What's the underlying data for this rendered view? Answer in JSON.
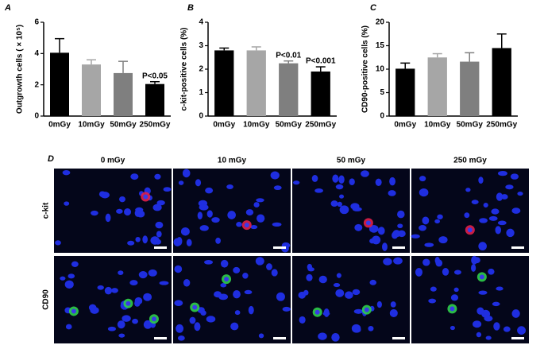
{
  "chart_data": [
    {
      "type": "bar",
      "label": "A",
      "ylabel": "Outgrowth cells ( × 10⁵)",
      "categories": [
        "0mGy",
        "10mGy",
        "50mGy",
        "250mGy"
      ],
      "values": [
        4.05,
        3.3,
        2.75,
        2.05
      ],
      "errors": [
        0.9,
        0.3,
        0.75,
        0.15
      ],
      "colors": [
        "#000000",
        "#a6a6a6",
        "#7f7f7f",
        "#000000"
      ],
      "annotations": [
        null,
        null,
        null,
        "P<0.05"
      ],
      "ylim": [
        0,
        6
      ],
      "yticks": [
        0,
        2,
        4,
        6
      ]
    },
    {
      "type": "bar",
      "label": "B",
      "ylabel": "c-kit-positive cells (%)",
      "categories": [
        "0mGy",
        "10mGy",
        "50mGy",
        "250mGy"
      ],
      "values": [
        2.8,
        2.8,
        2.25,
        1.9
      ],
      "errors": [
        0.1,
        0.15,
        0.1,
        0.2
      ],
      "colors": [
        "#000000",
        "#a6a6a6",
        "#7f7f7f",
        "#000000"
      ],
      "annotations": [
        null,
        null,
        "P<0.01",
        "P<0.001"
      ],
      "ylim": [
        0,
        4
      ],
      "yticks": [
        0,
        1,
        2,
        3,
        4
      ]
    },
    {
      "type": "bar",
      "label": "C",
      "ylabel": "CD90-positive cells (%)",
      "categories": [
        "0mGy",
        "10mGy",
        "50mGy",
        "250mGy"
      ],
      "values": [
        10.1,
        12.5,
        11.6,
        14.5
      ],
      "errors": [
        1.2,
        0.8,
        1.9,
        3.0
      ],
      "colors": [
        "#000000",
        "#a6a6a6",
        "#7f7f7f",
        "#000000"
      ],
      "annotations": [
        null,
        null,
        null,
        null
      ],
      "ylim": [
        0,
        20
      ],
      "yticks": [
        0,
        5,
        10,
        15,
        20
      ]
    }
  ],
  "panel_d": {
    "label": "D",
    "columns": [
      "0 mGy",
      "10 mGy",
      "50 mGy",
      "250 mGy"
    ],
    "rows": [
      "c-kit",
      "CD90"
    ]
  }
}
